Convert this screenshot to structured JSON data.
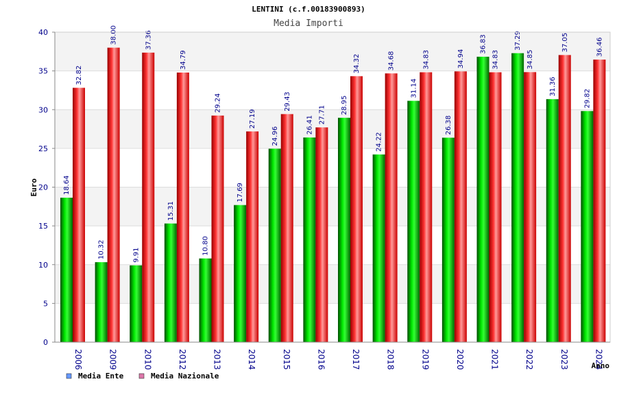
{
  "chart_data": {
    "type": "bar",
    "title": "LENTINI (c.f.00183900893)",
    "subtitle": "Media Importi",
    "ylabel": "Euro",
    "xlabel": "Anno",
    "ylim": [
      0,
      40
    ],
    "yticks": [
      0,
      5,
      10,
      15,
      20,
      25,
      30,
      35,
      40
    ],
    "grid": true,
    "legend_position": "bottom-left",
    "categories": [
      "2006",
      "2009",
      "2010",
      "2012",
      "2013",
      "2014",
      "2015",
      "2016",
      "2017",
      "2018",
      "2019",
      "2020",
      "2021",
      "2022",
      "2023",
      "2024"
    ],
    "series": [
      {
        "name": "Media Ente",
        "color": "#00cc00",
        "legend_color": "#6699ff",
        "values": [
          18.64,
          10.32,
          9.91,
          15.31,
          10.8,
          17.69,
          24.96,
          26.41,
          28.95,
          24.22,
          31.14,
          26.38,
          36.83,
          37.29,
          31.36,
          29.82
        ],
        "labels": [
          "18.64",
          "10.32",
          "9.91",
          "15.31",
          "10.80",
          "17.69",
          "24.96",
          "26.41",
          "28.95",
          "24.22",
          "31.14",
          "26.38",
          "36.83",
          "37.29",
          "31.36",
          "29.82"
        ]
      },
      {
        "name": "Media Nazionale",
        "color": "#ee1111",
        "legend_color": "#dd77aa",
        "values": [
          32.82,
          38.0,
          37.36,
          34.79,
          29.24,
          27.19,
          29.43,
          27.71,
          34.32,
          34.68,
          34.83,
          34.94,
          34.83,
          34.85,
          37.05,
          36.46
        ],
        "labels": [
          "32.82",
          "38.00",
          "37.36",
          "34.79",
          "29.24",
          "27.19",
          "29.43",
          "27.71",
          "34.32",
          "34.68",
          "34.83",
          "34.94",
          "34.83",
          "34.85",
          "37.05",
          "36.46"
        ]
      }
    ]
  }
}
